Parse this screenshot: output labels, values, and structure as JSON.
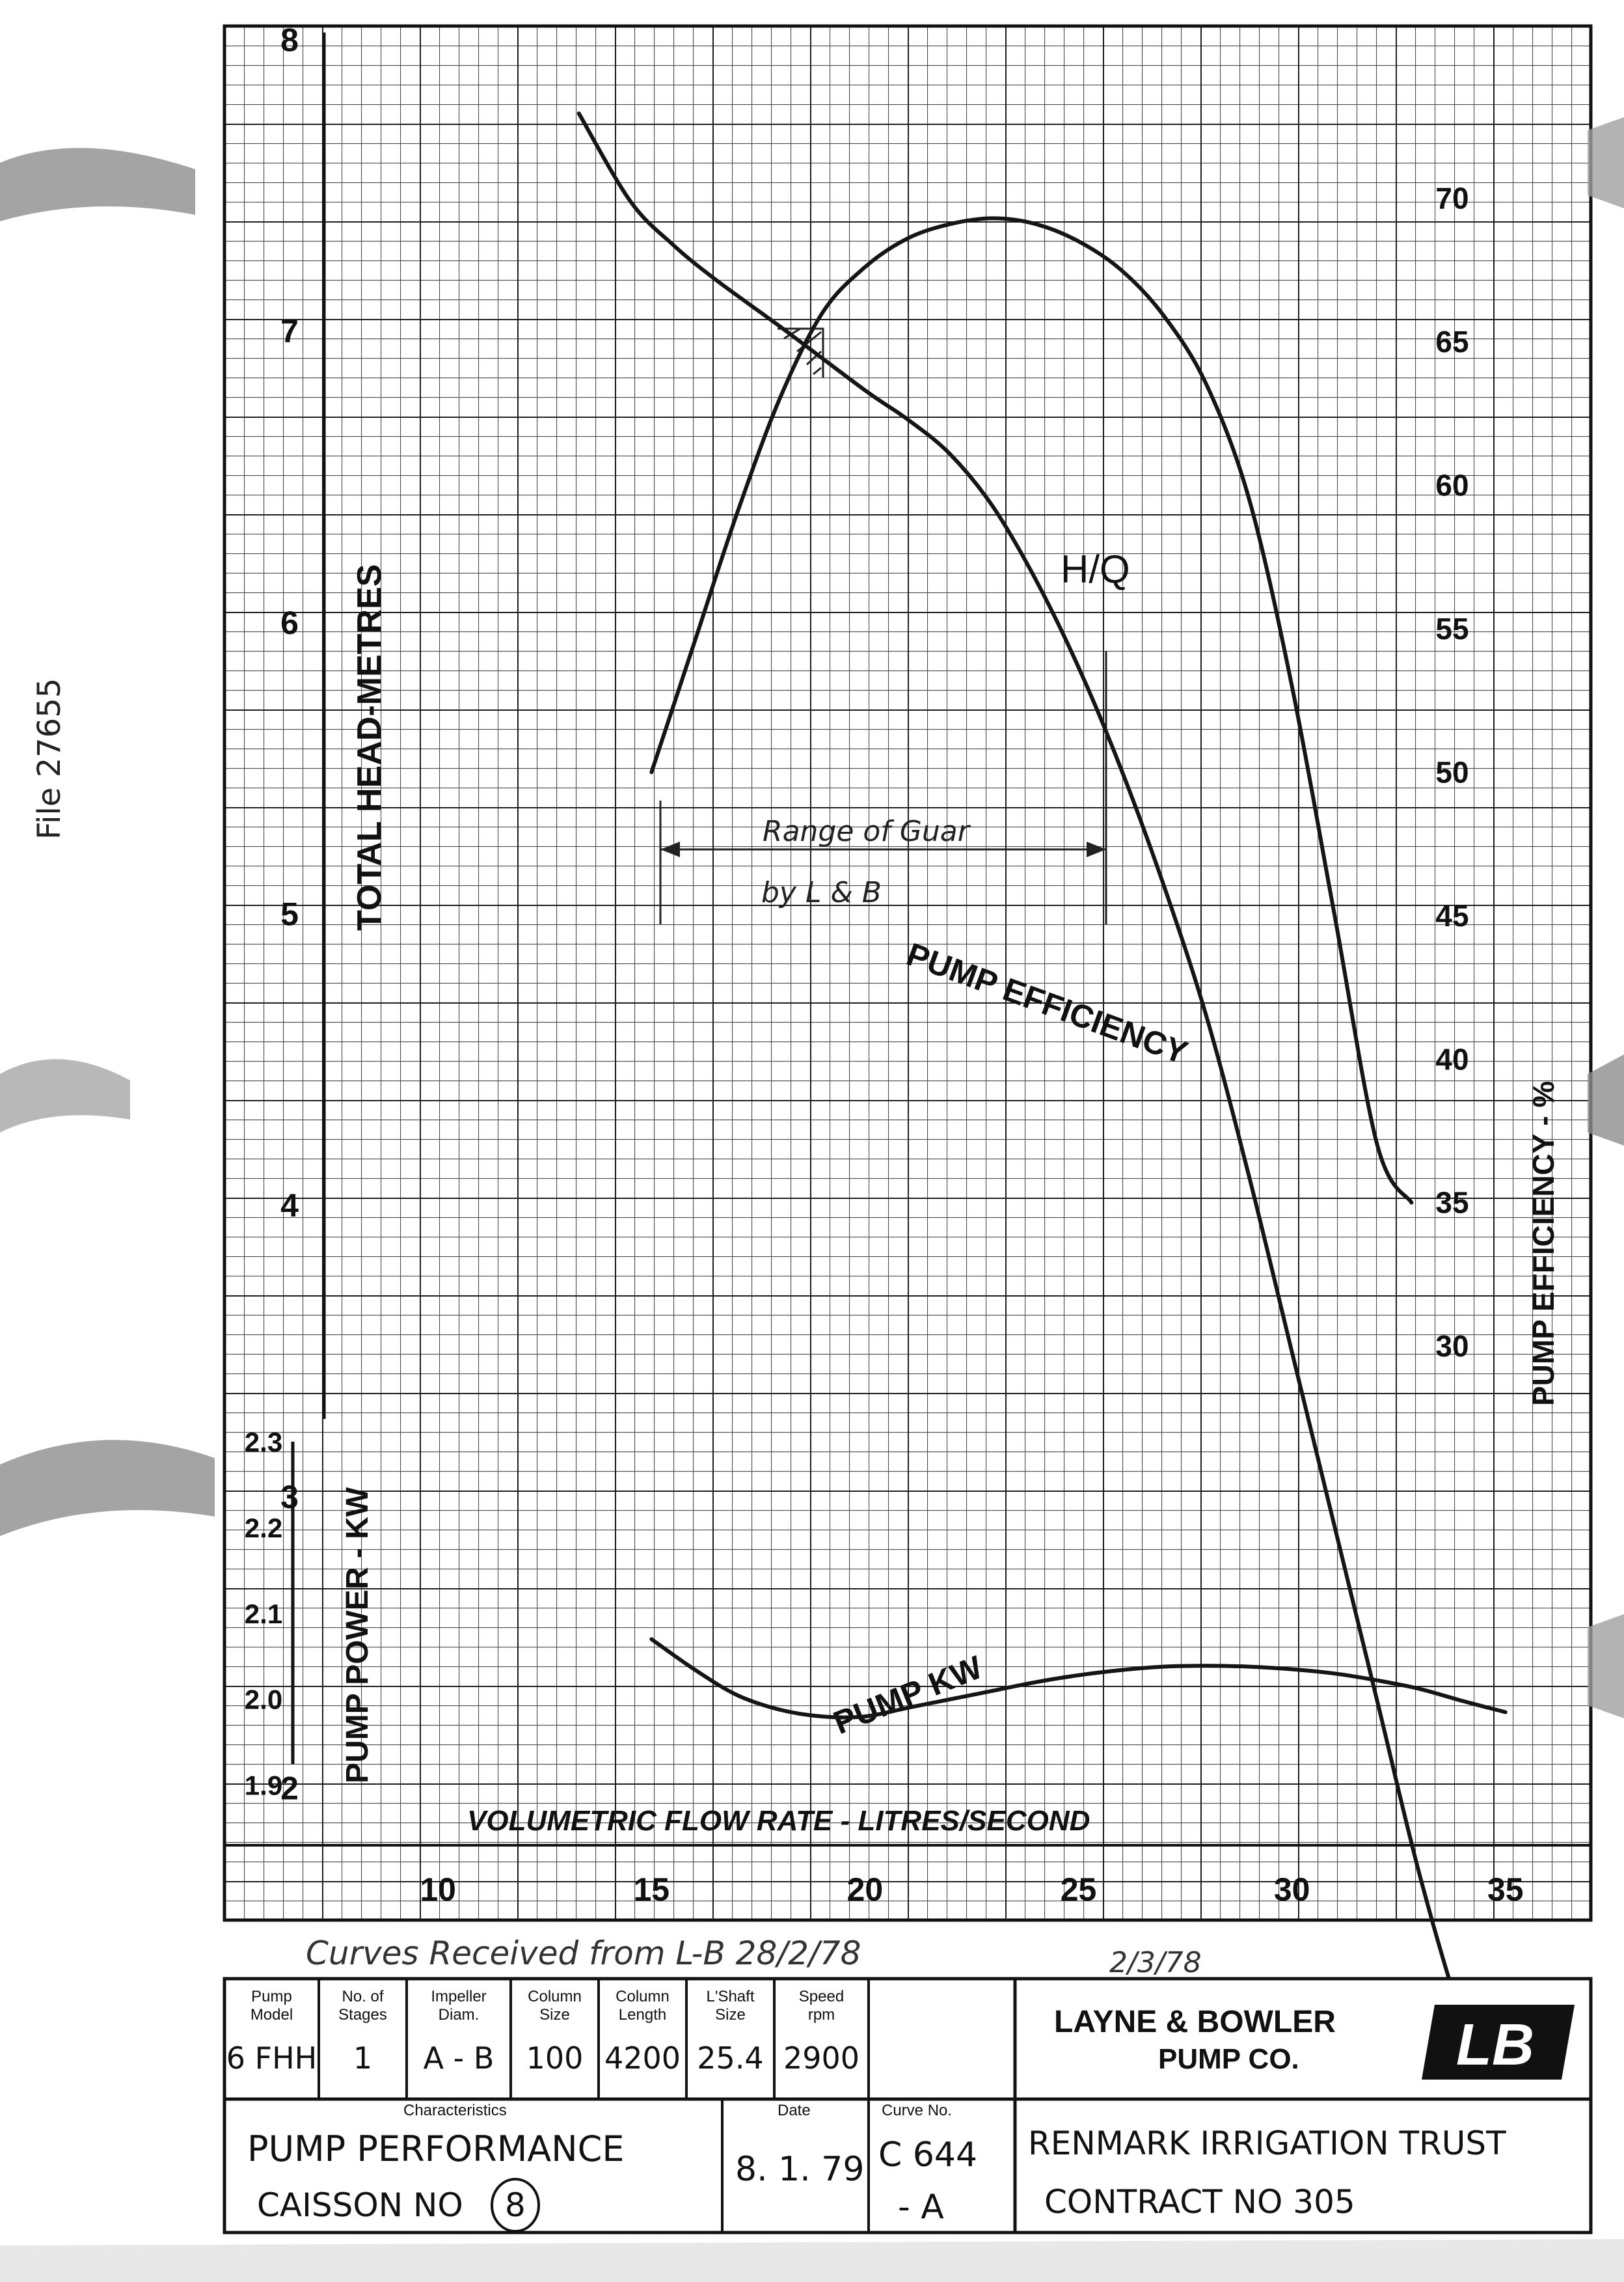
{
  "margin_note": "File 27655",
  "chart_data": {
    "type": "line",
    "x": {
      "label": "VOLUMETRIC FLOW RATE - LITRES/SECOND",
      "ticks": [
        10,
        15,
        20,
        25,
        30,
        35
      ],
      "range": [
        5,
        37
      ]
    },
    "head_axis": {
      "label": "TOTAL HEAD-METRES",
      "ticks": [
        2,
        3,
        4,
        5,
        6,
        7,
        8
      ],
      "range": [
        1.55,
        8.05
      ]
    },
    "efficiency_axis": {
      "label": "PUMP EFFICIENCY - %",
      "ticks": [
        30,
        35,
        40,
        45,
        50,
        55,
        60,
        65,
        70
      ],
      "range": [
        10,
        76
      ]
    },
    "power_axis": {
      "label": "PUMP POWER - KW",
      "ticks": [
        "1.9",
        "2.0",
        "2.1",
        "2.2",
        "2.3"
      ],
      "range": [
        1.83,
        2.3
      ]
    },
    "series": [
      {
        "name": "H/Q",
        "axis": "head",
        "color": "#151515",
        "points": [
          [
            13.3,
            7.75
          ],
          [
            14.5,
            7.45
          ],
          [
            15.5,
            7.3
          ],
          [
            16.5,
            7.18
          ],
          [
            18,
            7.02
          ],
          [
            20,
            6.8
          ],
          [
            21,
            6.7
          ],
          [
            22,
            6.58
          ],
          [
            23,
            6.4
          ],
          [
            24,
            6.15
          ],
          [
            25,
            5.85
          ],
          [
            26,
            5.5
          ],
          [
            27,
            5.1
          ],
          [
            28,
            4.65
          ],
          [
            29,
            4.1
          ],
          [
            30,
            3.5
          ],
          [
            31,
            2.9
          ],
          [
            32,
            2.3
          ],
          [
            33,
            1.7
          ],
          [
            34,
            1.2
          ],
          [
            34.8,
            0.9
          ]
        ]
      },
      {
        "name": "PUMP EFFICIENCY",
        "axis": "efficiency",
        "color": "#151515",
        "points": [
          [
            15,
            50
          ],
          [
            16,
            54.5
          ],
          [
            17,
            59
          ],
          [
            18,
            63
          ],
          [
            19,
            66
          ],
          [
            20,
            67.6
          ],
          [
            21,
            68.6
          ],
          [
            22,
            69.1
          ],
          [
            23,
            69.3
          ],
          [
            24,
            69.1
          ],
          [
            25,
            68.5
          ],
          [
            26,
            67.5
          ],
          [
            27,
            65.9
          ],
          [
            28,
            63.5
          ],
          [
            29,
            59.5
          ],
          [
            30,
            53
          ],
          [
            31,
            45
          ],
          [
            32,
            37
          ],
          [
            32.8,
            35
          ]
        ]
      },
      {
        "name": "PUMP KW",
        "axis": "power",
        "color": "#151515",
        "points": [
          [
            15,
            2.07
          ],
          [
            16,
            2.035
          ],
          [
            17,
            2.005
          ],
          [
            18,
            1.988
          ],
          [
            19,
            1.98
          ],
          [
            20,
            1.98
          ],
          [
            21,
            1.99
          ],
          [
            22,
            2.0
          ],
          [
            23,
            2.01
          ],
          [
            24,
            2.02
          ],
          [
            25,
            2.028
          ],
          [
            26,
            2.034
          ],
          [
            27,
            2.038
          ],
          [
            28,
            2.039
          ],
          [
            29,
            2.038
          ],
          [
            30,
            2.035
          ],
          [
            31,
            2.03
          ],
          [
            32,
            2.022
          ],
          [
            33,
            2.012
          ],
          [
            34,
            1.998
          ],
          [
            35,
            1.985
          ]
        ]
      }
    ],
    "annotations": {
      "range_line_1": "Range of Guar",
      "range_line_2": "by L & B",
      "hq_label": "H/Q",
      "efficiency_label": "PUMP EFFICIENCY",
      "kw_label": "PUMP KW"
    },
    "grid": true
  },
  "received_note": "Curves Received from L-B  28/2/78",
  "received_note_2": "2/3/78",
  "title_block": {
    "fields": [
      {
        "header": "Pump Model",
        "value": "6 FHH"
      },
      {
        "header": "No. of Stages",
        "value": "1"
      },
      {
        "header": "Impeller Diam.",
        "value": "A - B"
      },
      {
        "header": "Column Size",
        "value": "100"
      },
      {
        "header": "Column Length",
        "value": "4200"
      },
      {
        "header": "L'Shaft Size",
        "value": "25.4"
      },
      {
        "header": "Speed rpm",
        "value": "2900"
      }
    ],
    "company_line_1": "LAYNE & BOWLER",
    "company_line_2": "PUMP CO.",
    "logo_text": "LB",
    "characteristics_header": "Characteristics",
    "characteristics_line_1": "PUMP  PERFORMANCE",
    "characteristics_line_2": "CAISSON  NO",
    "caisson_no": "8",
    "date_header": "Date",
    "date_value": "8. 1. 79",
    "curve_header": "Curve No.",
    "curve_line_1": "C 644",
    "curve_line_2": "- A",
    "client_line_1": "RENMARK  IRRIGATION  TRUST",
    "client_line_2": "CONTRACT  NO  305"
  }
}
